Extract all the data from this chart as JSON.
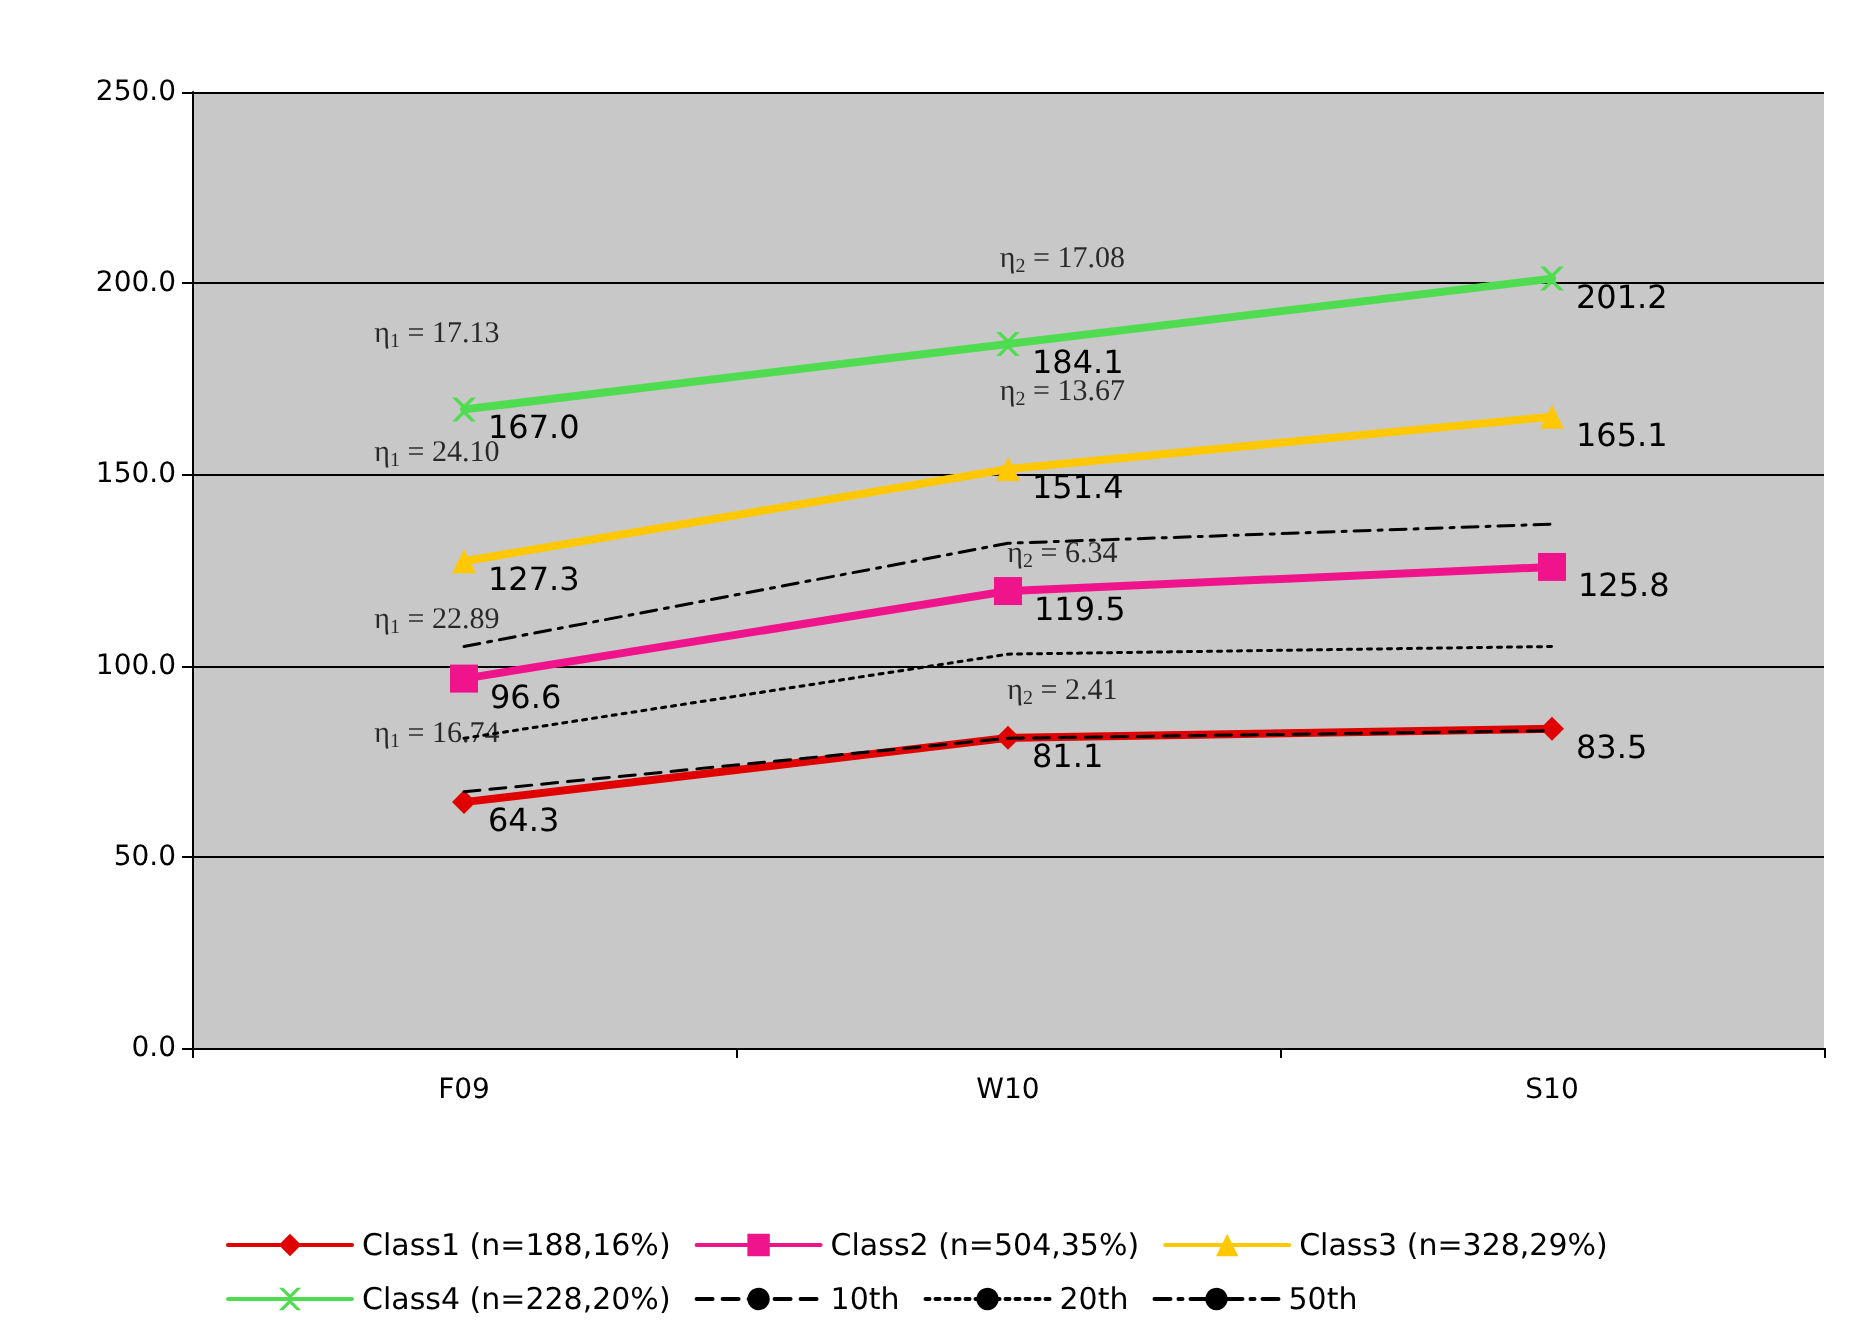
{
  "chart_data": {
    "type": "line",
    "categories": [
      "F09",
      "W10",
      "S10"
    ],
    "series": [
      {
        "name": "Class1 (n=188,16%)",
        "color": "#e00000",
        "values": [
          64.3,
          81.1,
          83.5
        ],
        "value_labels": [
          "64.3",
          "81.1",
          "83.5"
        ],
        "marker": "diamond",
        "line_style": "solid"
      },
      {
        "name": "Class2 (n=504,35%)",
        "color": "#f0148c",
        "values": [
          96.6,
          119.5,
          125.8
        ],
        "value_labels": [
          "96.6",
          "119.5",
          "125.8"
        ],
        "marker": "square",
        "line_style": "solid"
      },
      {
        "name": "Class3 (n=328,29%)",
        "color": "#ffc800",
        "values": [
          127.3,
          151.4,
          165.1
        ],
        "value_labels": [
          "127.3",
          "151.4",
          "165.1"
        ],
        "marker": "triangle",
        "line_style": "solid"
      },
      {
        "name": "Class4 (n=228,20%)",
        "color": "#50dc50",
        "values": [
          167.0,
          184.1,
          201.2
        ],
        "value_labels": [
          "167.0",
          "184.1",
          "201.2"
        ],
        "marker": "cross",
        "line_style": "solid"
      },
      {
        "name": "10th",
        "color": "#000000",
        "values": [
          67,
          81,
          83
        ],
        "marker": "none",
        "line_style": "dashed"
      },
      {
        "name": "20th",
        "color": "#000000",
        "values": [
          81,
          103,
          105
        ],
        "marker": "none",
        "line_style": "dotted"
      },
      {
        "name": "50th",
        "color": "#000000",
        "values": [
          105,
          132,
          137
        ],
        "marker": "none",
        "line_style": "dashdot"
      }
    ],
    "ylim": [
      0,
      250
    ],
    "yticks": [
      {
        "value": 0,
        "label": "0.0"
      },
      {
        "value": 50,
        "label": "50.0"
      },
      {
        "value": 100,
        "label": "100.0"
      },
      {
        "value": 150,
        "label": "150.0"
      },
      {
        "value": 200,
        "label": "200.0"
      },
      {
        "value": 250,
        "label": "250.0"
      }
    ],
    "grid": "y",
    "legend": "bottom",
    "annotations": [
      "η$_{1}$ = 17.13",
      "η$_{1}$ = 24.10",
      "η$_{1}$ = 22.89",
      "η$_{1}$ = 16.74",
      "η$_{2}$ = 17.08",
      "η$_{2}$ = 13.67",
      "η$_{2}$ = 6.34",
      "η$_{2}$ = 2.41"
    ]
  }
}
